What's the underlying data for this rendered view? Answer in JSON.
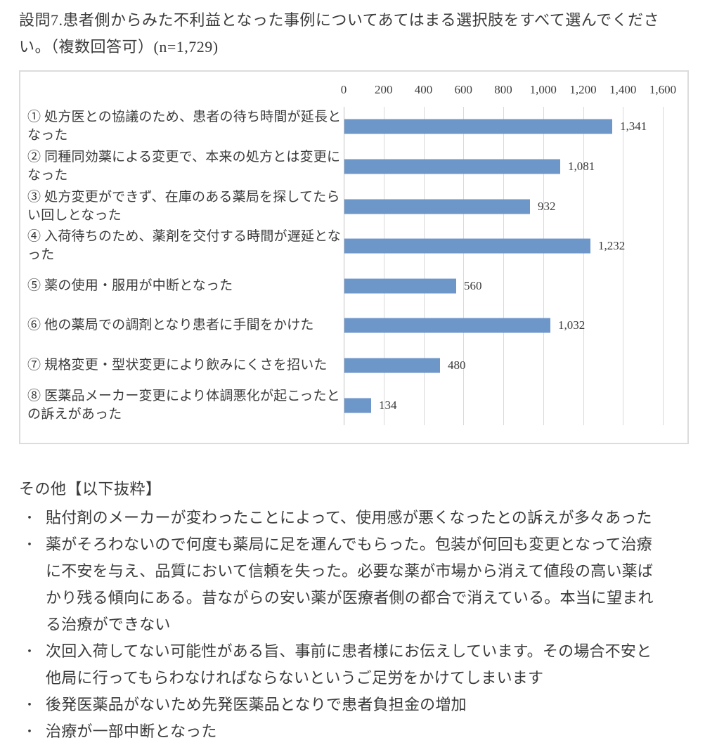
{
  "title": "設問7.患者側からみた不利益となった事例についてあてはまる選択肢をすべて選んでください。（複数回答可）(n=1,729)",
  "chart_data": {
    "type": "bar",
    "orientation": "horizontal",
    "title": "",
    "xlabel": "",
    "ylabel": "",
    "xlim": [
      0,
      1600
    ],
    "x_ticks": [
      "0",
      "200",
      "400",
      "600",
      "800",
      "1,000",
      "1,200",
      "1,400",
      "1,600"
    ],
    "axis_position": "top",
    "grid": "vertical",
    "legend": "none",
    "bar_color": "#6d96c9",
    "gridline_color": "#d9d9d9",
    "categories": [
      "① 処方医との協議のため、患者の待ち時間が延長となった",
      "② 同種同効薬による変更で、本来の処方とは変更になった",
      "③ 処方変更ができず、在庫のある薬局を探してたらい回しとなった",
      "④ 入荷待ちのため、薬剤を交付する時間が遅延となった",
      "⑤ 薬の使用・服用が中断となった",
      "⑥ 他の薬局での調剤となり患者に手間をかけた",
      "⑦ 規格変更・型状変更により飲みにくさを招いた",
      "⑧ 医薬品メーカー変更により体調悪化が起こったとの訴えがあった"
    ],
    "values": [
      1341,
      1081,
      932,
      1232,
      560,
      1032,
      480,
      134
    ],
    "value_labels": [
      "1,341",
      "1,081",
      "932",
      "1,232",
      "560",
      "1,032",
      "480",
      "134"
    ]
  },
  "other": {
    "heading": "その他【以下抜粋】",
    "bullet_char": "・",
    "bullets": [
      "貼付剤のメーカーが変わったことによって、使用感が悪くなったとの訴えが多々あった",
      "薬がそろわないので何度も薬局に足を運んでもらった。包装が何回も変更となって治療に不安を与え、品質において信頼を失った。必要な薬が市場から消えて値段の高い薬ばかり残る傾向にある。昔ながらの安い薬が医療者側の都合で消えている。本当に望まれる治療ができない",
      "次回入荷してない可能性がある旨、事前に患者様にお伝えしています。その場合不安と他局に行ってもらわなければならないというご足労をかけてしまいます",
      "後発医薬品がないため先発医薬品となりで患者負担金の増加",
      "治療が一部中断となった"
    ]
  }
}
